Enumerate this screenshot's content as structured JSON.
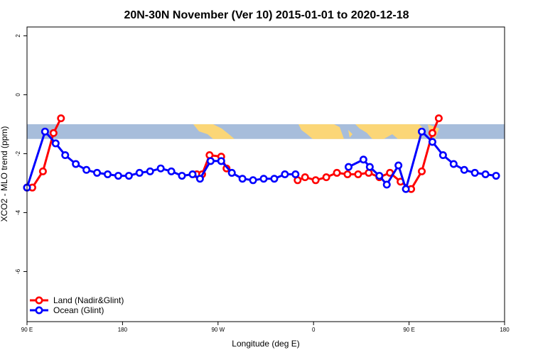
{
  "chart_data": {
    "type": "line",
    "title": "20N-30N November (Ver 10)   2015-01-01 to 2020-12-18",
    "xlabel": "Longitude (deg E)",
    "ylabel": "XCO2 - MLO trend (ppm)",
    "xlim": [
      90,
      540
    ],
    "ylim": [
      -7.7,
      2.3
    ],
    "x_ticks": [
      {
        "value": 90,
        "label": "90 E"
      },
      {
        "value": 180,
        "label": "180"
      },
      {
        "value": 270,
        "label": "90 W"
      },
      {
        "value": 360,
        "label": "0"
      },
      {
        "value": 450,
        "label": "90 E"
      },
      {
        "value": 540,
        "label": "180"
      }
    ],
    "y_ticks": [
      {
        "value": 2,
        "label": "2"
      },
      {
        "value": 0,
        "label": "0"
      },
      {
        "value": -2,
        "label": "-2"
      },
      {
        "value": -4,
        "label": "-4"
      },
      {
        "value": -6,
        "label": "-6"
      }
    ],
    "band": {
      "y_min": -1.5,
      "y_max": -1.0,
      "ocean_color": "#a7bddb",
      "land_color": "#fbd677"
    },
    "legend": {
      "position": "bottom-left"
    },
    "series": [
      {
        "name": "Land (Nadir&Glint)",
        "color": "#ff0000",
        "segments": [
          [
            [
              90,
              -3.15
            ],
            [
              95,
              -3.15
            ],
            [
              105,
              -2.6
            ],
            [
              115,
              -1.3
            ],
            [
              122,
              -0.8
            ]
          ],
          [
            [
              250,
              -2.7
            ],
            [
              255,
              -2.7
            ],
            [
              262,
              -2.05
            ],
            [
              273,
              -2.1
            ],
            [
              278,
              -2.5
            ]
          ],
          [
            [
              345,
              -2.9
            ],
            [
              352,
              -2.8
            ],
            [
              362,
              -2.9
            ],
            [
              372,
              -2.8
            ],
            [
              382,
              -2.65
            ],
            [
              392,
              -2.7
            ],
            [
              402,
              -2.7
            ],
            [
              412,
              -2.65
            ],
            [
              422,
              -2.8
            ],
            [
              432,
              -2.65
            ],
            [
              442,
              -2.95
            ],
            [
              452,
              -3.2
            ],
            [
              462,
              -2.6
            ],
            [
              472,
              -1.3
            ],
            [
              478,
              -0.8
            ]
          ]
        ]
      },
      {
        "name": "Ocean (Glint)",
        "color": "#0000ff",
        "segments": [
          [
            [
              90,
              -3.15
            ],
            [
              107,
              -1.25
            ],
            [
              117,
              -1.65
            ],
            [
              126,
              -2.05
            ],
            [
              136,
              -2.35
            ],
            [
              146,
              -2.55
            ],
            [
              156,
              -2.65
            ],
            [
              166,
              -2.7
            ],
            [
              176,
              -2.75
            ],
            [
              186,
              -2.75
            ],
            [
              196,
              -2.65
            ],
            [
              206,
              -2.6
            ],
            [
              216,
              -2.5
            ],
            [
              226,
              -2.6
            ],
            [
              236,
              -2.75
            ],
            [
              246,
              -2.7
            ],
            [
              253,
              -2.85
            ],
            [
              263,
              -2.25
            ],
            [
              273,
              -2.25
            ],
            [
              283,
              -2.65
            ],
            [
              293,
              -2.85
            ],
            [
              303,
              -2.9
            ],
            [
              313,
              -2.85
            ],
            [
              323,
              -2.85
            ],
            [
              333,
              -2.7
            ],
            [
              343,
              -2.7
            ]
          ],
          [
            [
              393,
              -2.45
            ],
            [
              407,
              -2.2
            ],
            [
              413,
              -2.45
            ],
            [
              422,
              -2.75
            ],
            [
              429,
              -3.05
            ],
            [
              440,
              -2.4
            ],
            [
              447,
              -3.2
            ],
            [
              462,
              -1.25
            ],
            [
              472,
              -1.6
            ],
            [
              482,
              -2.05
            ],
            [
              492,
              -2.35
            ],
            [
              502,
              -2.55
            ],
            [
              512,
              -2.65
            ],
            [
              522,
              -2.7
            ],
            [
              532,
              -2.75
            ]
          ]
        ]
      }
    ]
  }
}
